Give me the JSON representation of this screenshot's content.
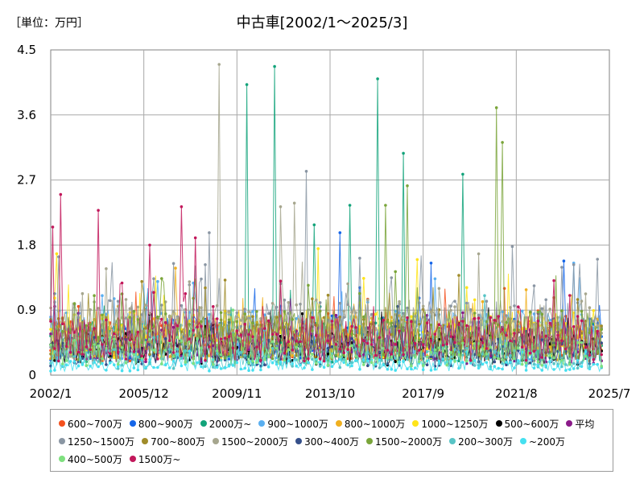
{
  "chart_data": {
    "type": "line",
    "title": "中古車[2002/1～2025/3]",
    "unit_label": "［単位：万円］",
    "xlabel": "",
    "ylabel": "",
    "ylim": [
      0,
      4.5
    ],
    "y_ticks": [
      "0",
      "0.9",
      "1.8",
      "2.7",
      "3.6",
      "4.5"
    ],
    "x_range": [
      "2002/1",
      "2025/7"
    ],
    "x_ticks": [
      "2002/1",
      "2005/12",
      "2009/11",
      "2013/10",
      "2017/9",
      "2021/8",
      "2025/7"
    ],
    "grid": true,
    "legend_position": "bottom",
    "series": [
      {
        "name": "600~700万",
        "color": "#f4511e",
        "typical": 0.5,
        "spikes": [
          [
            "2003/3",
            0.95
          ],
          [
            "2015/5",
            1.05
          ],
          [
            "2021/2",
            1.2
          ]
        ]
      },
      {
        "name": "800~900万",
        "color": "#1565e8",
        "typical": 0.55,
        "spikes": [
          [
            "2014/3",
            1.97
          ],
          [
            "2018/1",
            1.55
          ],
          [
            "2023/8",
            1.58
          ]
        ]
      },
      {
        "name": "2000万~",
        "color": "#12a37a",
        "typical": 0.5,
        "spikes": [
          [
            "2010/4",
            4.02
          ],
          [
            "2011/6",
            4.27
          ],
          [
            "2015/10",
            4.1
          ],
          [
            "2016/11",
            3.07
          ],
          [
            "2019/5",
            2.78
          ],
          [
            "2014/8",
            2.35
          ],
          [
            "2013/2",
            2.08
          ]
        ]
      },
      {
        "name": "900~1000万",
        "color": "#5aaff0",
        "typical": 0.6,
        "spikes": [
          [
            "2024/1",
            1.55
          ]
        ]
      },
      {
        "name": "800~1000万",
        "color": "#f0b020",
        "typical": 0.55,
        "spikes": [
          [
            "2007/4",
            1.48
          ]
        ]
      },
      {
        "name": "1000~1250万",
        "color": "#ffe419",
        "typical": 0.6,
        "spikes": [
          [
            "2002/4",
            1.68
          ],
          [
            "2013/4",
            1.75
          ],
          [
            "2017/6",
            1.6
          ]
        ]
      },
      {
        "name": "500~600万",
        "color": "#000000",
        "typical": 0.4,
        "spikes": [
          [
            "2012/8",
            0.85
          ]
        ]
      },
      {
        "name": "平均",
        "color": "#8b1a89",
        "typical": 0.45,
        "spikes": [
          [
            "2002/3",
            0.95
          ]
        ]
      },
      {
        "name": "1250~1500万",
        "color": "#8a96a3",
        "typical": 0.7,
        "spikes": [
          [
            "2012/10",
            2.82
          ],
          [
            "2008/9",
            1.97
          ],
          [
            "2021/6",
            1.78
          ]
        ]
      },
      {
        "name": "700~800万",
        "color": "#a08c2a",
        "typical": 0.55,
        "spikes": [
          [
            "2019/3",
            1.38
          ]
        ]
      },
      {
        "name": "1500~2000万",
        "color": "#a6a68e",
        "typical": 0.7,
        "spikes": [
          [
            "2009/2",
            4.3
          ],
          [
            "2012/4",
            2.38
          ],
          [
            "2011/9",
            2.33
          ]
        ]
      },
      {
        "name": "300~400万",
        "color": "#35508a",
        "typical": 0.35,
        "spikes": [
          [
            "2016/8",
            0.95
          ]
        ]
      },
      {
        "name": "1500~2000万",
        "color": "#7aa53a",
        "typical": 0.6,
        "spikes": [
          [
            "2020/10",
            3.7
          ],
          [
            "2021/1",
            3.22
          ],
          [
            "2017/1",
            2.62
          ],
          [
            "2016/2",
            2.35
          ]
        ]
      },
      {
        "name": "200~300万",
        "color": "#58c4c6",
        "typical": 0.25,
        "spikes": [
          [
            "2020/4",
            1.1
          ]
        ]
      },
      {
        "name": "~200万",
        "color": "#45e0f0",
        "typical": 0.15,
        "spikes": [
          [
            "2011/1",
            0.62
          ]
        ]
      },
      {
        "name": "400~500万",
        "color": "#7fe07f",
        "typical": 0.35,
        "spikes": [
          [
            "2009/9",
            0.9
          ]
        ]
      },
      {
        "name": "1500万~",
        "color": "#c2185b",
        "typical": 0.55,
        "spikes": [
          [
            "2002/2",
            2.05
          ],
          [
            "2002/6",
            2.5
          ],
          [
            "2004/1",
            2.28
          ],
          [
            "2007/7",
            2.33
          ],
          [
            "2008/2",
            1.9
          ],
          [
            "2006/3",
            1.8
          ]
        ]
      }
    ]
  }
}
